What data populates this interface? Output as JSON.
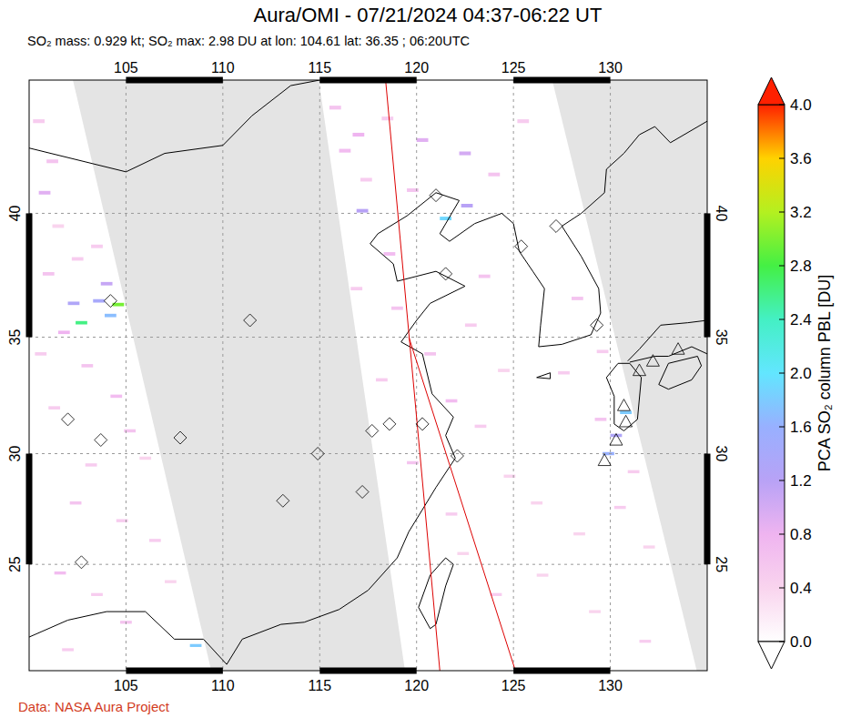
{
  "chart_data": {
    "type": "map",
    "title": "Aura/OMI - 07/21/2024 04:37-06:22 UT",
    "subtitle": "SO₂ mass: 0.929 kt; SO₂ max: 2.98 DU at lon: 104.61 lat: 36.35 ; 06:20UTC",
    "source": "Data: NASA Aura Project",
    "xlim": [
      100,
      135
    ],
    "ylim": [
      20,
      45
    ],
    "xticks": [
      105,
      110,
      115,
      120,
      125,
      130
    ],
    "yticks": [
      25,
      30,
      35,
      40
    ],
    "grid": true,
    "colorbar": {
      "label": "PCA SO₂ column PBL [DU]",
      "range": [
        0,
        4
      ],
      "ticks": [
        {
          "value": 0,
          "label": "0.0"
        },
        0.4,
        0.8,
        1.2,
        1.6,
        {
          "value": 2,
          "label": "2.0"
        },
        2.4,
        2.8,
        3.2,
        3.6,
        {
          "value": 4,
          "label": "4.0"
        }
      ],
      "colors": [
        "#ffffff",
        "#f9d4ee",
        "#efb4f0",
        "#b8a2f6",
        "#98b0ff",
        "#62e6ff",
        "#44f0c4",
        "#44f044",
        "#b4f020",
        "#ffd200",
        "#ff2000"
      ]
    },
    "no_data_regions": [
      [
        [
          102.26,
          45
        ],
        [
          114.95,
          45
        ],
        [
          119.4,
          20
        ],
        [
          109.4,
          20
        ]
      ],
      [
        [
          127.0,
          45
        ],
        [
          135,
          45
        ],
        [
          135,
          20
        ],
        [
          134.46,
          20
        ]
      ]
    ],
    "orbit_lines": [
      [
        [
          118.4,
          45
        ],
        [
          121.2,
          20
        ]
      ],
      [
        [
          119.6,
          35
        ],
        [
          125.1,
          20
        ]
      ]
    ],
    "pixels": [
      [
        100.5,
        43.5,
        0.5
      ],
      [
        101.2,
        42.0,
        0.6
      ],
      [
        100.8,
        40.8,
        0.9
      ],
      [
        101.5,
        39.5,
        0.4
      ],
      [
        102.5,
        38.2,
        0.5
      ],
      [
        101.0,
        37.6,
        0.6
      ],
      [
        103.5,
        38.7,
        0.5
      ],
      [
        104.0,
        37.2,
        1.1
      ],
      [
        102.3,
        36.4,
        1.3
      ],
      [
        102.7,
        35.6,
        2.6
      ],
      [
        104.6,
        36.35,
        2.98
      ],
      [
        103.6,
        36.5,
        1.4
      ],
      [
        104.2,
        35.9,
        1.7
      ],
      [
        101.8,
        35.2,
        0.8
      ],
      [
        100.6,
        34.3,
        0.5
      ],
      [
        103.0,
        33.8,
        0.6
      ],
      [
        104.5,
        32.5,
        0.7
      ],
      [
        101.3,
        32.0,
        0.5
      ],
      [
        105.2,
        31.0,
        0.6
      ],
      [
        103.2,
        29.5,
        0.5
      ],
      [
        106.0,
        29.8,
        0.4
      ],
      [
        102.4,
        27.8,
        0.6
      ],
      [
        104.8,
        27.0,
        0.5
      ],
      [
        106.5,
        26.1,
        0.5
      ],
      [
        101.6,
        24.6,
        0.7
      ],
      [
        103.5,
        23.6,
        0.5
      ],
      [
        107.3,
        24.2,
        0.4
      ],
      [
        105.0,
        22.3,
        0.6
      ],
      [
        108.6,
        21.2,
        1.8
      ],
      [
        102.0,
        21.0,
        0.5
      ],
      [
        115.8,
        44.0,
        0.6
      ],
      [
        117.0,
        43.0,
        0.8
      ],
      [
        116.3,
        42.4,
        0.7
      ],
      [
        118.5,
        43.6,
        0.5
      ],
      [
        120.3,
        42.8,
        0.9
      ],
      [
        122.5,
        42.3,
        1.0
      ],
      [
        117.4,
        41.3,
        0.5
      ],
      [
        117.2,
        40.1,
        1.2
      ],
      [
        119.8,
        40.9,
        0.6
      ],
      [
        121.5,
        39.8,
        1.9
      ],
      [
        122.6,
        40.3,
        1.2
      ],
      [
        124.0,
        41.5,
        0.6
      ],
      [
        125.5,
        43.5,
        0.5
      ],
      [
        118.6,
        38.4,
        0.7
      ],
      [
        123.5,
        37.5,
        0.6
      ],
      [
        116.9,
        37.0,
        0.5
      ],
      [
        119.0,
        36.2,
        0.6
      ],
      [
        122.8,
        35.5,
        0.5
      ],
      [
        120.7,
        34.3,
        0.6
      ],
      [
        124.5,
        33.6,
        0.4
      ],
      [
        118.2,
        33.2,
        0.5
      ],
      [
        121.8,
        32.3,
        0.7
      ],
      [
        123.3,
        31.2,
        0.5
      ],
      [
        119.8,
        29.6,
        0.6
      ],
      [
        124.8,
        29.0,
        0.4
      ],
      [
        121.8,
        27.3,
        0.5
      ],
      [
        126.2,
        27.8,
        0.4
      ],
      [
        122.4,
        25.5,
        0.4
      ],
      [
        124.1,
        23.6,
        0.5
      ],
      [
        126.5,
        24.5,
        0.4
      ],
      [
        128.3,
        36.6,
        0.6
      ],
      [
        127.6,
        33.5,
        0.5
      ],
      [
        129.5,
        31.5,
        0.6
      ],
      [
        130.8,
        31.8,
        1.8
      ],
      [
        129.9,
        30.0,
        1.6
      ],
      [
        130.3,
        30.8,
        1.3
      ],
      [
        129.6,
        34.4,
        0.5
      ],
      [
        130.5,
        27.6,
        0.5
      ],
      [
        128.4,
        26.4,
        0.4
      ],
      [
        131.2,
        29.2,
        0.5
      ],
      [
        129.2,
        22.8,
        0.4
      ],
      [
        131.8,
        21.4,
        0.5
      ],
      [
        132.0,
        25.8,
        0.4
      ]
    ],
    "volcanoes": {
      "diamonds": [
        [
          121.0,
          40.7
        ],
        [
          127.2,
          39.5
        ],
        [
          125.4,
          38.7
        ],
        [
          121.5,
          37.6
        ],
        [
          104.2,
          36.5
        ],
        [
          111.4,
          35.7
        ],
        [
          129.3,
          35.5
        ],
        [
          102.0,
          31.5
        ],
        [
          103.7,
          30.6
        ],
        [
          107.8,
          30.7
        ],
        [
          102.7,
          25.1
        ],
        [
          113.1,
          27.9
        ],
        [
          117.2,
          28.3
        ],
        [
          114.9,
          30.0
        ],
        [
          117.7,
          31.0
        ],
        [
          118.6,
          31.3
        ],
        [
          120.3,
          31.3
        ],
        [
          122.1,
          29.9
        ]
      ],
      "triangles": [
        [
          130.7,
          32.1
        ],
        [
          130.8,
          31.4
        ],
        [
          130.3,
          30.6
        ],
        [
          129.7,
          29.7
        ],
        [
          131.5,
          33.6
        ],
        [
          133.5,
          34.5
        ],
        [
          132.2,
          34.0
        ]
      ]
    },
    "coastlines": [
      [
        [
          107.5,
          21.5
        ],
        [
          109,
          21.5
        ],
        [
          110.2,
          20.3
        ],
        [
          111,
          21.5
        ],
        [
          113,
          22.2
        ],
        [
          114.2,
          22.3
        ],
        [
          116,
          22.9
        ],
        [
          117.5,
          23.8
        ],
        [
          119,
          25.3
        ],
        [
          119.6,
          26.5
        ],
        [
          120.3,
          27.5
        ],
        [
          121,
          28.5
        ],
        [
          122,
          29.8
        ],
        [
          121.5,
          30.8
        ],
        [
          121.9,
          31.6
        ],
        [
          120.8,
          32.6
        ],
        [
          120.3,
          34.3
        ],
        [
          119.2,
          34.8
        ],
        [
          120,
          35.7
        ],
        [
          120.7,
          36.4
        ],
        [
          122.5,
          37.1
        ],
        [
          121,
          37.7
        ],
        [
          119,
          37.3
        ],
        [
          118.8,
          38
        ],
        [
          117.6,
          38.8
        ],
        [
          118,
          39.2
        ],
        [
          119.5,
          39.9
        ],
        [
          121,
          40.8
        ],
        [
          122.2,
          40.5
        ],
        [
          121.2,
          39.2
        ],
        [
          121.7,
          38.9
        ],
        [
          123,
          39.6
        ],
        [
          124.4,
          40
        ],
        [
          125,
          39.6
        ],
        [
          125.3,
          38.5
        ],
        [
          126,
          37.7
        ],
        [
          126.6,
          37
        ],
        [
          126.4,
          35.5
        ],
        [
          126.3,
          34.6
        ],
        [
          127.5,
          34.7
        ],
        [
          129,
          35.1
        ],
        [
          129.5,
          36
        ],
        [
          129.4,
          37
        ],
        [
          128.5,
          38.3
        ],
        [
          127.5,
          39.5
        ],
        [
          128.5,
          40
        ],
        [
          129.7,
          40.8
        ],
        [
          129.8,
          41.7
        ],
        [
          130.7,
          42.3
        ],
        [
          131.5,
          43
        ],
        [
          132.3,
          43.3
        ],
        [
          133.1,
          42.7
        ],
        [
          135,
          43.5
        ]
      ],
      [
        [
          100,
          42.5
        ],
        [
          105,
          41.6
        ],
        [
          107,
          42.3
        ],
        [
          110,
          42.6
        ],
        [
          111.5,
          43.7
        ],
        [
          113.5,
          44.8
        ],
        [
          115,
          45
        ]
      ],
      [
        [
          100,
          21.6
        ],
        [
          102,
          22.4
        ],
        [
          104,
          22.8
        ],
        [
          106,
          22.8
        ],
        [
          107.5,
          21.5
        ]
      ],
      [
        [
          120.1,
          23
        ],
        [
          120.7,
          22
        ],
        [
          121,
          22.2
        ],
        [
          121.5,
          24
        ],
        [
          121.9,
          25
        ],
        [
          121.5,
          25.3
        ],
        [
          120.7,
          24.5
        ],
        [
          120.1,
          23
        ]
      ],
      [
        [
          129.8,
          33.3
        ],
        [
          130.4,
          33.9
        ],
        [
          131,
          33.9
        ],
        [
          131.6,
          33.3
        ],
        [
          131.4,
          31.5
        ],
        [
          130.7,
          31
        ],
        [
          130.2,
          31.3
        ],
        [
          130.2,
          32.5
        ],
        [
          129.8,
          33.3
        ]
      ],
      [
        [
          130.9,
          34
        ],
        [
          131.5,
          34.5
        ],
        [
          132.6,
          35.5
        ],
        [
          134,
          35.6
        ],
        [
          135,
          35.7
        ]
      ],
      [
        [
          135,
          34.3
        ],
        [
          134.2,
          34.6
        ],
        [
          133,
          34.2
        ],
        [
          132.3,
          34.2
        ],
        [
          131,
          33.95
        ]
      ],
      [
        [
          132.5,
          33
        ],
        [
          133,
          33.9
        ],
        [
          134.5,
          34.2
        ],
        [
          134.7,
          33.8
        ],
        [
          134.2,
          33.2
        ],
        [
          133,
          32.8
        ],
        [
          132.5,
          33
        ]
      ],
      [
        [
          126.2,
          33.3
        ],
        [
          126.9,
          33.5
        ],
        [
          126.9,
          33.25
        ],
        [
          126.2,
          33.3
        ]
      ]
    ]
  }
}
